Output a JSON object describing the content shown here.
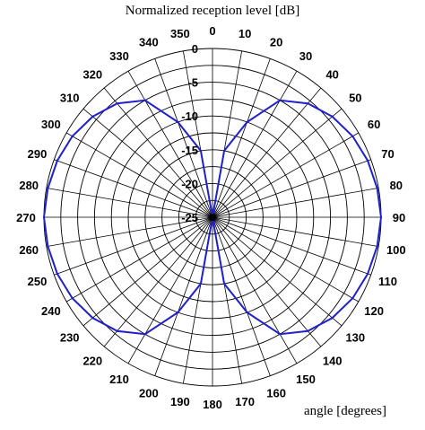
{
  "chart_data": {
    "type": "polar-line",
    "title": "Normalized reception level [dB]",
    "angle_axis_label": "angle [degrees]",
    "angle_ticks": [
      0,
      10,
      20,
      30,
      40,
      50,
      60,
      70,
      80,
      90,
      100,
      110,
      120,
      130,
      140,
      150,
      160,
      170,
      180,
      190,
      200,
      210,
      220,
      230,
      240,
      250,
      260,
      270,
      280,
      290,
      300,
      310,
      320,
      330,
      340,
      350
    ],
    "radial_ticks": [
      0,
      -5,
      -10,
      -15,
      -20,
      -25
    ],
    "radial_range": [
      -25,
      0
    ],
    "grid": true,
    "series": [
      {
        "color": "#2020cc",
        "angles": [
          0,
          10,
          20,
          30,
          40,
          50,
          60,
          70,
          80,
          90,
          100,
          110,
          120,
          130,
          140,
          150,
          160,
          170,
          180,
          190,
          200,
          210,
          220,
          230,
          240,
          250,
          260,
          270,
          280,
          290,
          300,
          310,
          320,
          330,
          340,
          350
        ],
        "values": [
          -25,
          -15,
          -10,
          -5,
          -3,
          -1.8,
          -1,
          -0.5,
          -0.2,
          0,
          -0.2,
          -0.5,
          -1,
          -1.8,
          -3,
          -5,
          -10,
          -15,
          -25,
          -15,
          -10,
          -5,
          -3,
          -1.8,
          -1,
          -0.5,
          -0.2,
          0,
          -0.2,
          -0.5,
          -1,
          -1.8,
          -3,
          -5,
          -10,
          -15
        ]
      }
    ]
  }
}
